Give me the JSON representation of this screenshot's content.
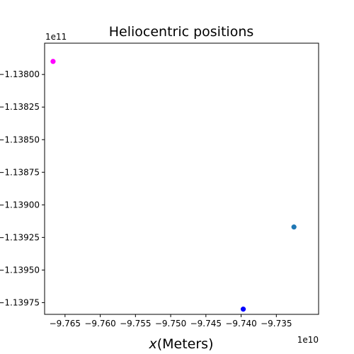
{
  "chart_data": {
    "type": "scatter",
    "title": "Heliocentric positions",
    "xlabel_italic": "x",
    "xlabel_rest": "(Meters)",
    "ylabel": "",
    "x_offset_label": "1e10",
    "y_offset_label": "1e11",
    "xlim": [
      -9.7679,
      -9.729
    ],
    "ylim": [
      -1.13984,
      -1.13776
    ],
    "x_ticks": [
      {
        "value": -9.765,
        "label": "−9.765"
      },
      {
        "value": -9.76,
        "label": "−9.760"
      },
      {
        "value": -9.755,
        "label": "−9.755"
      },
      {
        "value": -9.75,
        "label": "−9.750"
      },
      {
        "value": -9.745,
        "label": "−9.745"
      },
      {
        "value": -9.74,
        "label": "−9.740"
      },
      {
        "value": -9.735,
        "label": "−9.735"
      }
    ],
    "y_ticks": [
      {
        "value": -1.138,
        "label": "−1.13800"
      },
      {
        "value": -1.13825,
        "label": "−1.13825"
      },
      {
        "value": -1.1385,
        "label": "−1.13850"
      },
      {
        "value": -1.13875,
        "label": "−1.13875"
      },
      {
        "value": -1.139,
        "label": "−1.13900"
      },
      {
        "value": -1.13925,
        "label": "−1.13925"
      },
      {
        "value": -1.1395,
        "label": "−1.13950"
      },
      {
        "value": -1.13975,
        "label": "−1.13975"
      }
    ],
    "points": [
      {
        "x": -9.7667,
        "y": -1.1379,
        "color": "#ff00ff"
      },
      {
        "x": -9.7325,
        "y": -1.13917,
        "color": "#1f77b4"
      },
      {
        "x": -9.7397,
        "y": -1.1398,
        "color": "#0000ff"
      }
    ],
    "grid": false,
    "legend": "none"
  }
}
